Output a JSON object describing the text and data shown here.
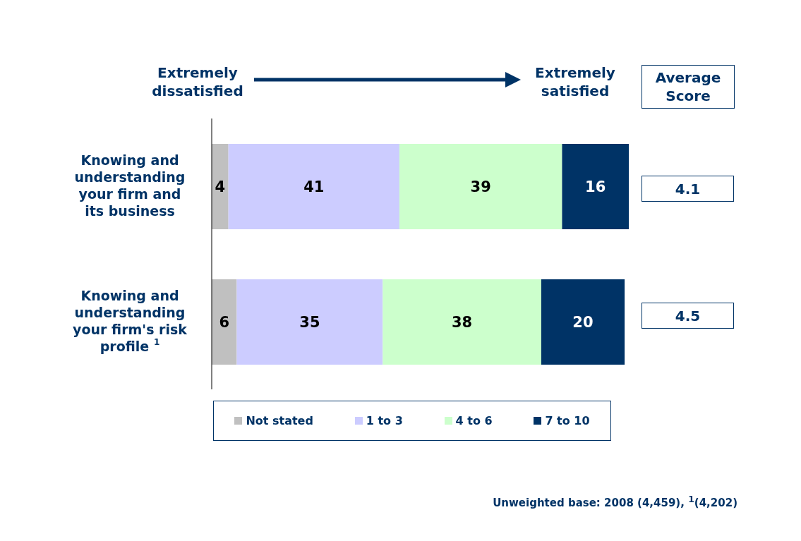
{
  "chart_data": {
    "type": "bar",
    "orientation": "horizontal",
    "stacked": true,
    "categories": [
      "Knowing and understanding your firm and its business",
      "Knowing and understanding your firm's risk profile $^{1}$"
    ],
    "series": [
      {
        "name": "Not stated",
        "color": "#c0c0c0",
        "values": [
          4,
          6
        ]
      },
      {
        "name": "1 to 3",
        "color": "#ccccff",
        "values": [
          41,
          35
        ]
      },
      {
        "name": "4 to 6",
        "color": "#ccffcc",
        "values": [
          39,
          38
        ]
      },
      {
        "name": "7 to 10",
        "color": "#003366",
        "values": [
          16,
          20
        ]
      }
    ],
    "xlim": [
      0,
      100
    ],
    "tick_labels": "y",
    "data_labels": true,
    "legend": "bottom",
    "grid": false,
    "annotations": [
      "Extremely dissatisfied",
      "Extremely satisfied",
      "Average Score",
      "4.1",
      "4.5",
      "Unweighted base: 2008 (4,459), $^{1}$(4,202)"
    ]
  }
}
